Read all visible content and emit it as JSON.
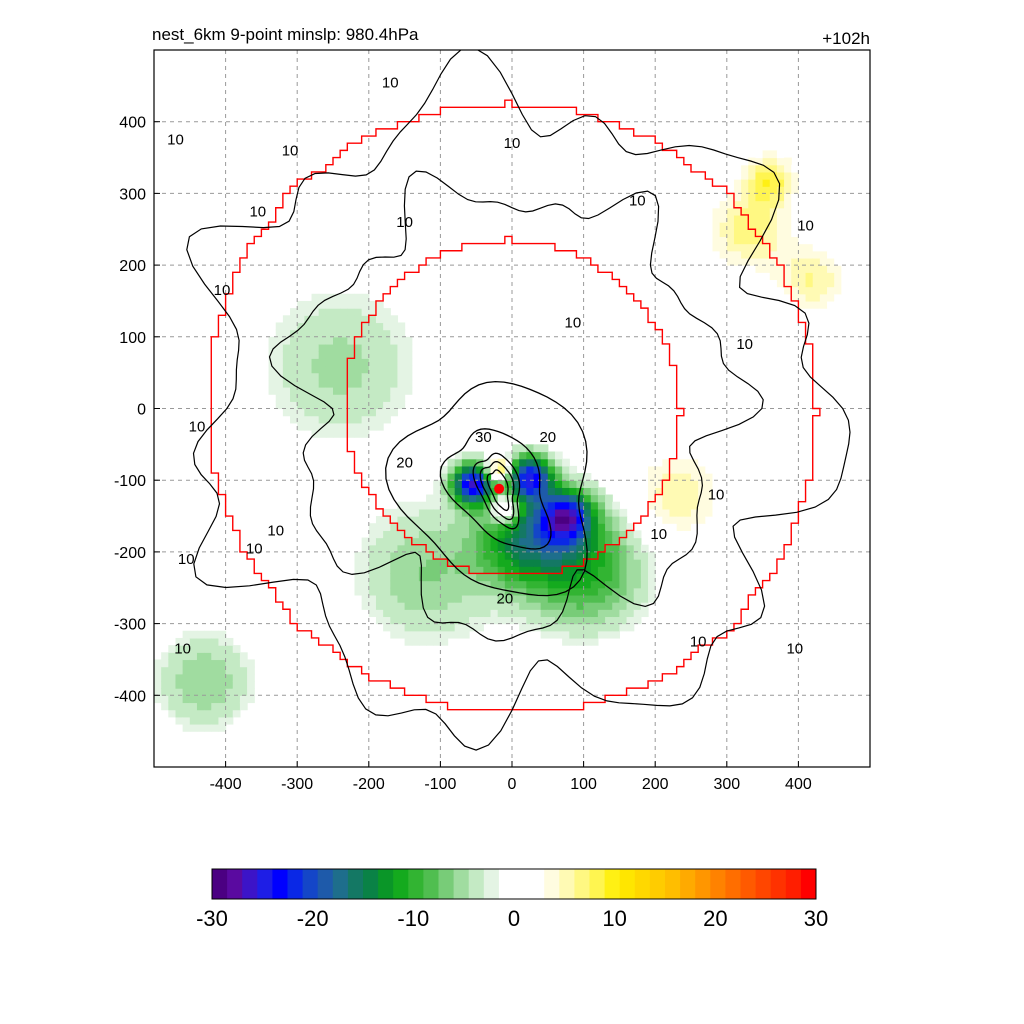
{
  "header": {
    "title": "nest_6km  9-point minslp: 980.4hPa",
    "forecast_hour": "+102h"
  },
  "chart_data": {
    "type": "heatmap",
    "title": "nest_6km  9-point minslp: 980.4hPa",
    "corner_label": "+102h",
    "xlabel": "",
    "ylabel": "",
    "xlim": [
      -500,
      500
    ],
    "ylim": [
      -500,
      500
    ],
    "x_ticks": [
      -400,
      -300,
      -200,
      -100,
      0,
      100,
      200,
      300,
      400
    ],
    "y_ticks": [
      400,
      300,
      200,
      100,
      0,
      -100,
      -200,
      -300,
      -400
    ],
    "grid": true,
    "grid_style": "dashed",
    "storm_center": {
      "x": -18,
      "y": -112,
      "color": "#ff0000"
    },
    "contours": {
      "color": "#000000",
      "levels_labeled": [
        10,
        20,
        30
      ]
    },
    "contour_labels": [
      {
        "x": -170,
        "y": 455,
        "text": "10"
      },
      {
        "x": -470,
        "y": 375,
        "text": "10"
      },
      {
        "x": -310,
        "y": 360,
        "text": "10"
      },
      {
        "x": -355,
        "y": 275,
        "text": "10"
      },
      {
        "x": -150,
        "y": 260,
        "text": "10"
      },
      {
        "x": 0,
        "y": 370,
        "text": "10"
      },
      {
        "x": 175,
        "y": 290,
        "text": "10"
      },
      {
        "x": 410,
        "y": 255,
        "text": "10"
      },
      {
        "x": -405,
        "y": 165,
        "text": "10"
      },
      {
        "x": 85,
        "y": 120,
        "text": "10"
      },
      {
        "x": 325,
        "y": 90,
        "text": "10"
      },
      {
        "x": -440,
        "y": -25,
        "text": "10"
      },
      {
        "x": -40,
        "y": -40,
        "text": "30"
      },
      {
        "x": 50,
        "y": -40,
        "text": "20"
      },
      {
        "x": -150,
        "y": -75,
        "text": "20"
      },
      {
        "x": 285,
        "y": -120,
        "text": "10"
      },
      {
        "x": -330,
        "y": -170,
        "text": "10"
      },
      {
        "x": 205,
        "y": -175,
        "text": "10"
      },
      {
        "x": -360,
        "y": -195,
        "text": "10"
      },
      {
        "x": -455,
        "y": -210,
        "text": "10"
      },
      {
        "x": -10,
        "y": -265,
        "text": "20"
      },
      {
        "x": -460,
        "y": -335,
        "text": "10"
      },
      {
        "x": 260,
        "y": -325,
        "text": "10"
      },
      {
        "x": 395,
        "y": -335,
        "text": "10"
      }
    ],
    "boundary_rings": [
      {
        "name": "inner",
        "radius": 235,
        "color": "#ff0000"
      },
      {
        "name": "outer",
        "radius": 425,
        "color": "#ff0000"
      }
    ],
    "colorbar": {
      "min": -30,
      "max": 30,
      "tick_labels": [
        "-30",
        "-20",
        "-10",
        "0",
        "10",
        "20",
        "30"
      ],
      "colors": [
        "#4b0082",
        "#5a0aa0",
        "#3c14c8",
        "#1e1ee6",
        "#0000ff",
        "#0a28e6",
        "#1446c8",
        "#1e5aaa",
        "#1e6e8c",
        "#147864",
        "#0a8246",
        "#0a9628",
        "#14aa1e",
        "#32b432",
        "#50be50",
        "#78cc78",
        "#a0dca0",
        "#c4eac4",
        "#e4f4e4",
        "#ffffff",
        "#ffffff",
        "#ffffff",
        "#fffce0",
        "#fffab4",
        "#fff882",
        "#fff550",
        "#fff014",
        "#ffe600",
        "#ffd800",
        "#ffcc00",
        "#ffbe00",
        "#ffaa00",
        "#ff9600",
        "#ff8200",
        "#ff6e00",
        "#ff5a00",
        "#ff4600",
        "#ff3200",
        "#ff1e00",
        "#ff0000"
      ]
    },
    "field_features": [
      {
        "kind": "negative",
        "x": -55,
        "y": -105,
        "amplitude": 24,
        "spread": 20
      },
      {
        "kind": "negative",
        "x": 25,
        "y": -95,
        "amplitude": 22,
        "spread": 22
      },
      {
        "kind": "negative",
        "x": 75,
        "y": -150,
        "amplitude": 20,
        "spread": 26
      },
      {
        "kind": "negative",
        "x": 15,
        "y": -180,
        "amplitude": 12,
        "spread": 45
      },
      {
        "kind": "negative",
        "x": 100,
        "y": -220,
        "amplitude": 11,
        "spread": 60
      },
      {
        "kind": "negative",
        "x": -120,
        "y": -230,
        "amplitude": 6,
        "spread": 70
      },
      {
        "kind": "negative",
        "x": -240,
        "y": 60,
        "amplitude": 5,
        "spread": 80
      },
      {
        "kind": "negative",
        "x": -430,
        "y": -380,
        "amplitude": 6,
        "spread": 50
      },
      {
        "kind": "positive",
        "x": -18,
        "y": -85,
        "amplitude": 14,
        "spread": 12
      },
      {
        "kind": "positive",
        "x": -10,
        "y": -140,
        "amplitude": 12,
        "spread": 14
      },
      {
        "kind": "positive",
        "x": 230,
        "y": -120,
        "amplitude": 6,
        "spread": 45
      },
      {
        "kind": "positive",
        "x": 330,
        "y": 250,
        "amplitude": 7,
        "spread": 40
      },
      {
        "kind": "positive",
        "x": 420,
        "y": 180,
        "amplitude": 6,
        "spread": 35
      },
      {
        "kind": "positive",
        "x": 360,
        "y": 320,
        "amplitude": 8,
        "spread": 25
      }
    ]
  }
}
